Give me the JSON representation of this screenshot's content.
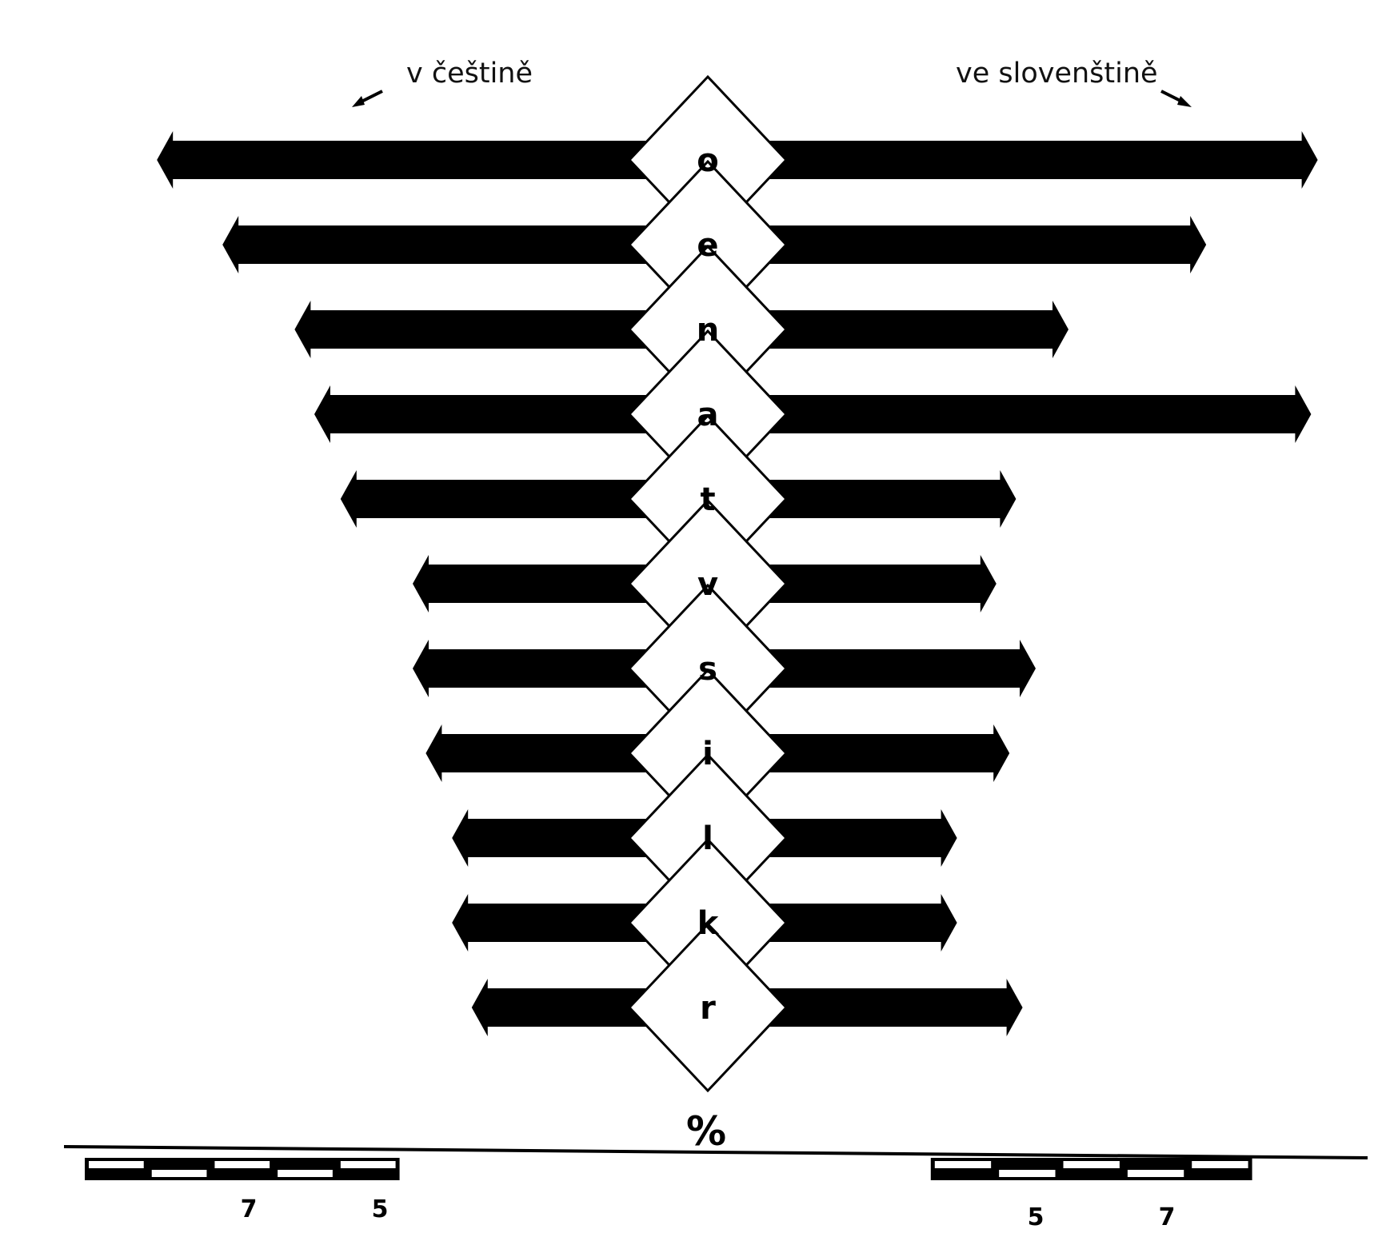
{
  "headers": {
    "left": "v češtině",
    "right": "ve slovenštině"
  },
  "chart_data": {
    "type": "bar",
    "orientation": "horizontal-diverging",
    "unit": "%",
    "left_label": "v češtině",
    "right_label": "ve slovenštině",
    "categories": [
      "o",
      "e",
      "n",
      "a",
      "t",
      "v",
      "s",
      "i",
      "l",
      "k",
      "r"
    ],
    "series": [
      {
        "name": "v češtině",
        "side": "left",
        "values": [
          8.4,
          7.4,
          6.3,
          6.0,
          5.6,
          4.5,
          4.5,
          4.3,
          3.9,
          3.9,
          3.6
        ]
      },
      {
        "name": "ve slovenštině",
        "side": "right",
        "values": [
          9.3,
          7.6,
          5.5,
          9.2,
          4.7,
          4.4,
          5.0,
          4.6,
          3.8,
          3.8,
          4.8
        ]
      }
    ],
    "axis": {
      "left_ticks": [
        7,
        5
      ],
      "right_ticks": [
        5,
        7
      ],
      "scale_range": [
        0,
        10
      ]
    }
  }
}
